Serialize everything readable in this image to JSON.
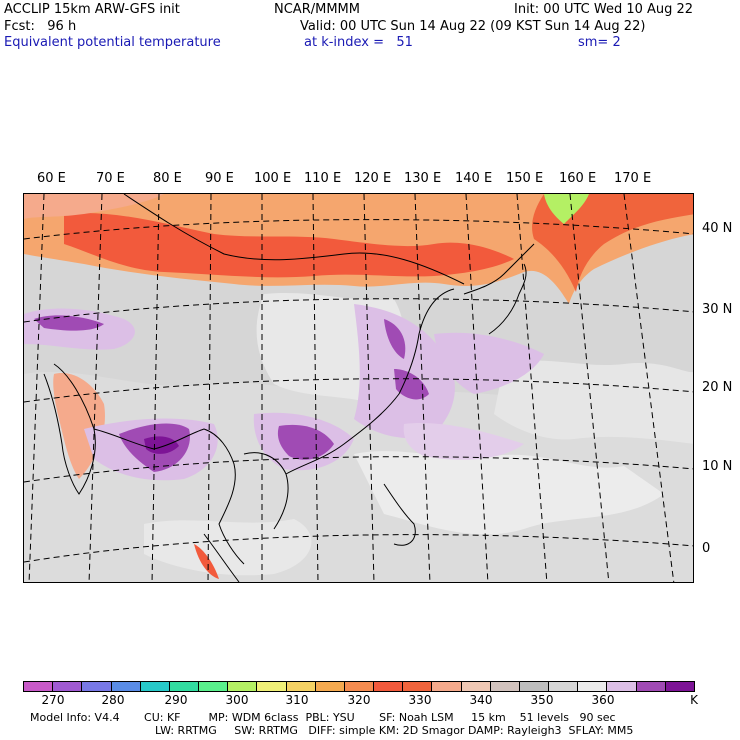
{
  "header": {
    "model": "ACCLIP 15km ARW-GFS init",
    "center": "NCAR/MMMM",
    "init": "Init: 00 UTC Wed 10 Aug 22",
    "fcst": "Fcst:   96 h",
    "valid": "Valid: 00 UTC Sun 14 Aug 22 (09 KST Sun 14 Aug 22)",
    "field": "Equivalent potential temperature",
    "level": "at k-index =   51",
    "smooth": "sm= 2"
  },
  "map": {
    "lon_labels": [
      "60 E",
      "70 E",
      "80 E",
      "90 E",
      "100 E",
      "110 E",
      "120 E",
      "130 E",
      "140 E",
      "150 E",
      "160 E",
      "170 E"
    ],
    "lat_labels": [
      "40 N",
      "30 N",
      "20 N",
      "10 N",
      "0"
    ],
    "colors": {
      "ocean_grey": "#d6d6d6",
      "land_grey": "#bebebe",
      "light": "#e8e8e8",
      "warm_red": "#f25a3c",
      "orange": "#f7925a",
      "peach": "#f3b394",
      "yellowgreen": "#b4f064",
      "lavender": "#dcbfe6",
      "purple": "#a04bb4",
      "dark_purple": "#7d1496"
    }
  },
  "colorbar": {
    "colors": [
      "#c85ac8",
      "#a05ad2",
      "#7878e6",
      "#5a8ce6",
      "#28c8c8",
      "#32dca0",
      "#5af08c",
      "#b4f064",
      "#f0f078",
      "#f5d264",
      "#f5aa50",
      "#f58c50",
      "#f25a3c",
      "#f0643c",
      "#f5aa8c",
      "#f0c8b4",
      "#d2c3be",
      "#bebebe",
      "#d6d6d6",
      "#ebebeb",
      "#dcbfe6",
      "#a04bb4",
      "#7d1496"
    ],
    "labels": [
      "270",
      "280",
      "290",
      "300",
      "310",
      "320",
      "330",
      "340",
      "350",
      "360",
      "K"
    ]
  },
  "footer": {
    "line1": "Model Info: V4.4       CU: KF        MP: WDM 6class  PBL: YSU       SF: Noah LSM     15 km    51 levels   90 sec",
    "line2": "LW: RRTMG     SW: RRTMG   DIFF: simple KM: 2D Smagor DAMP: Rayleigh3  SFLAY: MM5"
  }
}
